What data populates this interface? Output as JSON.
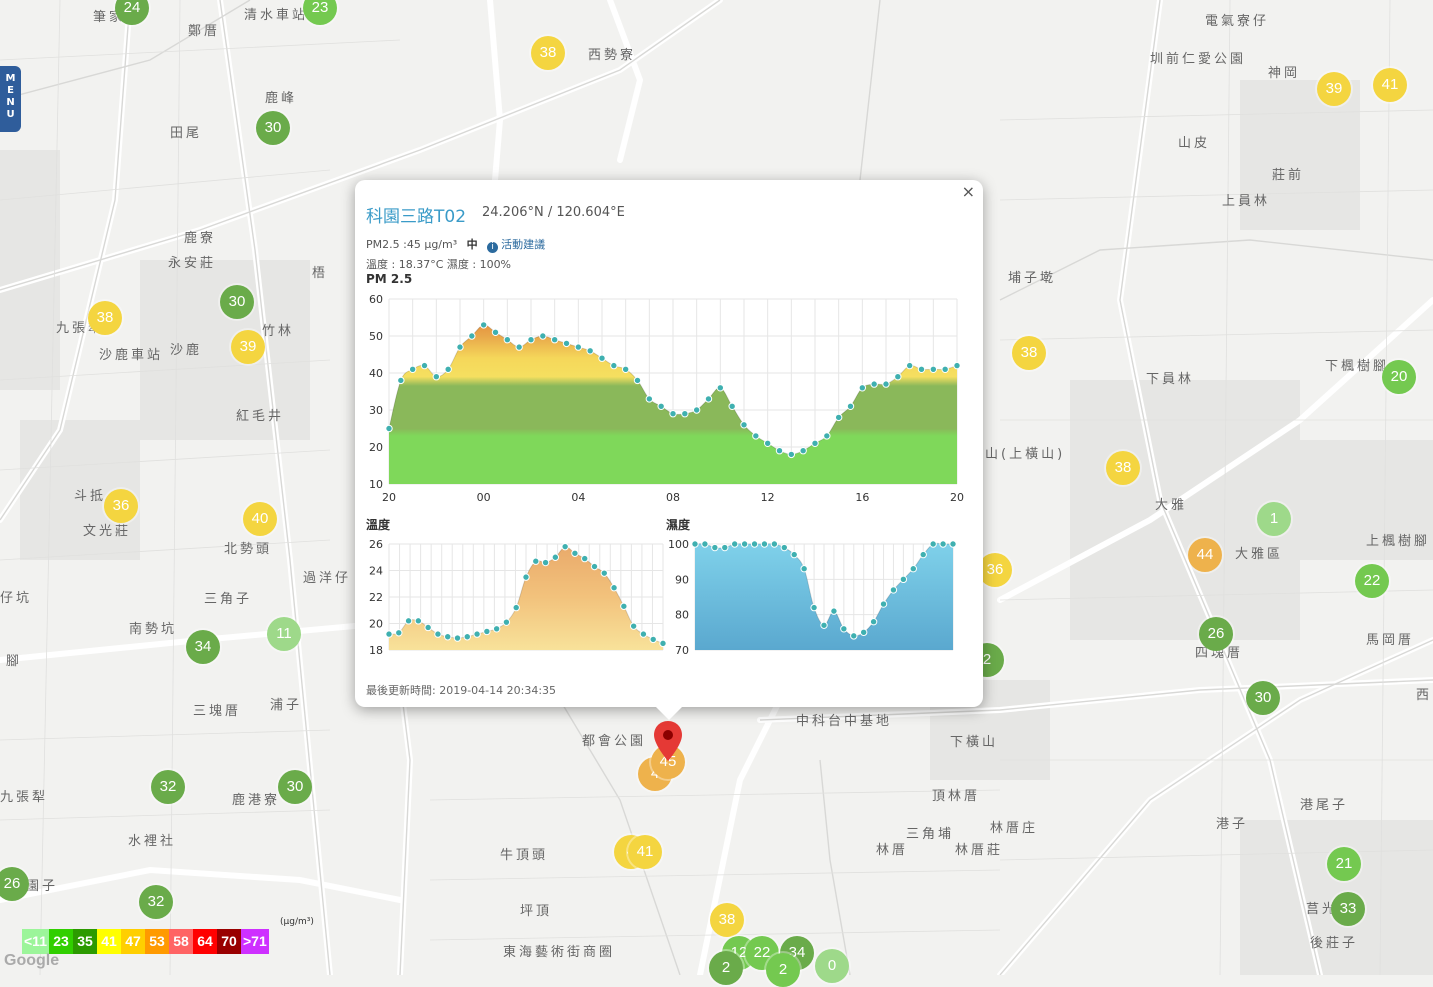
{
  "menu": {
    "label": "MENU"
  },
  "places": [
    {
      "name": "筆家",
      "x": 93,
      "y": 14
    },
    {
      "name": "鄭厝",
      "x": 188,
      "y": 28
    },
    {
      "name": "清水車站",
      "x": 244,
      "y": 12
    },
    {
      "name": "西勢寮",
      "x": 588,
      "y": 52
    },
    {
      "name": "電氣寮仔",
      "x": 1205,
      "y": 18
    },
    {
      "name": "鹿峰",
      "x": 265,
      "y": 95
    },
    {
      "name": "田尾",
      "x": 170,
      "y": 130
    },
    {
      "name": "圳前仁愛公園",
      "x": 1150,
      "y": 56
    },
    {
      "name": "神岡",
      "x": 1268,
      "y": 70
    },
    {
      "name": "山皮",
      "x": 1178,
      "y": 140
    },
    {
      "name": "莊前",
      "x": 1272,
      "y": 172
    },
    {
      "name": "鹿寮",
      "x": 184,
      "y": 235
    },
    {
      "name": "永安莊",
      "x": 168,
      "y": 260
    },
    {
      "name": "上員林",
      "x": 1222,
      "y": 198
    },
    {
      "name": "梧",
      "x": 312,
      "y": 270
    },
    {
      "name": "埔子墘",
      "x": 1008,
      "y": 275
    },
    {
      "name": "九張犁",
      "x": 56,
      "y": 325
    },
    {
      "name": "竹林",
      "x": 262,
      "y": 328
    },
    {
      "name": "沙鹿車站",
      "x": 99,
      "y": 352
    },
    {
      "name": "沙鹿",
      "x": 170,
      "y": 347
    },
    {
      "name": "下員林",
      "x": 1146,
      "y": 376
    },
    {
      "name": "下楓樹腳",
      "x": 1325,
      "y": 363
    },
    {
      "name": "紅毛井",
      "x": 236,
      "y": 413
    },
    {
      "name": "山(上橫山)",
      "x": 985,
      "y": 451
    },
    {
      "name": "斗抵",
      "x": 74,
      "y": 493
    },
    {
      "name": "文光莊",
      "x": 83,
      "y": 528
    },
    {
      "name": "大雅",
      "x": 1155,
      "y": 502
    },
    {
      "name": "大雅區",
      "x": 1235,
      "y": 551
    },
    {
      "name": "北勢頭",
      "x": 224,
      "y": 546
    },
    {
      "name": "過洋仔",
      "x": 303,
      "y": 575
    },
    {
      "name": "上楓樹腳",
      "x": 1366,
      "y": 538
    },
    {
      "name": "三角子",
      "x": 204,
      "y": 596
    },
    {
      "name": "仔坑",
      "x": 0,
      "y": 595
    },
    {
      "name": "南勢坑",
      "x": 129,
      "y": 626
    },
    {
      "name": "四塊厝",
      "x": 1195,
      "y": 650
    },
    {
      "name": "馬岡厝",
      "x": 1366,
      "y": 637
    },
    {
      "name": "腳",
      "x": 6,
      "y": 658
    },
    {
      "name": "浦子",
      "x": 270,
      "y": 702
    },
    {
      "name": "三塊厝",
      "x": 193,
      "y": 708
    },
    {
      "name": "中科台中基地",
      "x": 796,
      "y": 718
    },
    {
      "name": "都會公園",
      "x": 582,
      "y": 738
    },
    {
      "name": "下橫山",
      "x": 950,
      "y": 739
    },
    {
      "name": "西",
      "x": 1416,
      "y": 692
    },
    {
      "name": "頂林厝",
      "x": 932,
      "y": 793
    },
    {
      "name": "九張犁",
      "x": 0,
      "y": 794
    },
    {
      "name": "鹿港寮",
      "x": 232,
      "y": 797
    },
    {
      "name": "港尾子",
      "x": 1300,
      "y": 802
    },
    {
      "name": "港子",
      "x": 1216,
      "y": 821
    },
    {
      "name": "三角埔",
      "x": 906,
      "y": 831
    },
    {
      "name": "林厝庄",
      "x": 990,
      "y": 825
    },
    {
      "name": "水裡社",
      "x": 128,
      "y": 838
    },
    {
      "name": "林厝",
      "x": 876,
      "y": 847
    },
    {
      "name": "林厝莊",
      "x": 955,
      "y": 847
    },
    {
      "name": "牛頂頭",
      "x": 500,
      "y": 852
    },
    {
      "name": "園子",
      "x": 26,
      "y": 883
    },
    {
      "name": "坪頂",
      "x": 520,
      "y": 908
    },
    {
      "name": "莒光",
      "x": 1306,
      "y": 906
    },
    {
      "name": "後莊子",
      "x": 1310,
      "y": 940
    },
    {
      "name": "東海藝術街商圈",
      "x": 503,
      "y": 949
    }
  ],
  "markers": [
    {
      "value": "24",
      "x": 132,
      "y": 8,
      "c": "g"
    },
    {
      "value": "23",
      "x": 320,
      "y": 8,
      "c": "lg"
    },
    {
      "value": "38",
      "x": 548,
      "y": 53,
      "c": "y"
    },
    {
      "value": "39",
      "x": 1334,
      "y": 89,
      "c": "y"
    },
    {
      "value": "41",
      "x": 1390,
      "y": 85,
      "c": "y"
    },
    {
      "value": "30",
      "x": 273,
      "y": 128,
      "c": "g"
    },
    {
      "value": "30",
      "x": 237,
      "y": 302,
      "c": "g"
    },
    {
      "value": "38",
      "x": 105,
      "y": 318,
      "c": "y"
    },
    {
      "value": "39",
      "x": 248,
      "y": 347,
      "c": "y"
    },
    {
      "value": "38",
      "x": 1029,
      "y": 353,
      "c": "y"
    },
    {
      "value": "20",
      "x": 1399,
      "y": 377,
      "c": "lg"
    },
    {
      "value": "38",
      "x": 1123,
      "y": 468,
      "c": "y"
    },
    {
      "value": "36",
      "x": 121,
      "y": 506,
      "c": "y"
    },
    {
      "value": "40",
      "x": 260,
      "y": 519,
      "c": "y"
    },
    {
      "value": "1",
      "x": 1274,
      "y": 519,
      "c": "pg"
    },
    {
      "value": "44",
      "x": 1205,
      "y": 555,
      "c": "o"
    },
    {
      "value": "36",
      "x": 995,
      "y": 570,
      "c": "y"
    },
    {
      "value": "22",
      "x": 1372,
      "y": 581,
      "c": "lg"
    },
    {
      "value": "11",
      "x": 284,
      "y": 634,
      "c": "pg"
    },
    {
      "value": "26",
      "x": 1216,
      "y": 634,
      "c": "g"
    },
    {
      "value": "34",
      "x": 203,
      "y": 647,
      "c": "g"
    },
    {
      "value": "2",
      "x": 987,
      "y": 660,
      "c": "g"
    },
    {
      "value": "30",
      "x": 1263,
      "y": 698,
      "c": "g"
    },
    {
      "value": "4",
      "x": 655,
      "y": 774,
      "c": "o"
    },
    {
      "value": "45",
      "x": 668,
      "y": 762,
      "c": "o"
    },
    {
      "value": "32",
      "x": 168,
      "y": 787,
      "c": "g"
    },
    {
      "value": "30",
      "x": 295,
      "y": 787,
      "c": "g"
    },
    {
      "value": "4",
      "x": 631,
      "y": 852,
      "c": "y"
    },
    {
      "value": "41",
      "x": 645,
      "y": 852,
      "c": "y"
    },
    {
      "value": "21",
      "x": 1344,
      "y": 864,
      "c": "lg"
    },
    {
      "value": "26",
      "x": 12,
      "y": 884,
      "c": "g"
    },
    {
      "value": "32",
      "x": 156,
      "y": 902,
      "c": "g"
    },
    {
      "value": "33",
      "x": 1348,
      "y": 909,
      "c": "g"
    },
    {
      "value": "38",
      "x": 727,
      "y": 920,
      "c": "y"
    },
    {
      "value": "12",
      "x": 739,
      "y": 953,
      "c": "lg"
    },
    {
      "value": "22",
      "x": 762,
      "y": 953,
      "c": "lg"
    },
    {
      "value": "34",
      "x": 797,
      "y": 953,
      "c": "g"
    },
    {
      "value": "0",
      "x": 832,
      "y": 966,
      "c": "pg"
    },
    {
      "value": "2",
      "x": 726,
      "y": 968,
      "c": "g"
    },
    {
      "value": "2",
      "x": 783,
      "y": 970,
      "c": "lg"
    }
  ],
  "popup": {
    "title": "科園三路T02",
    "coords": "24.206°N / 120.604°E",
    "pm_text": "PM2.5 :45 μg/m³",
    "pm_level": "中",
    "advice_link": "活動建議",
    "info_icon": "info-icon",
    "temp_humidity_text": "溫度 : 18.37°C 濕度 : 100%",
    "pm_chart_title": "PM 2.5",
    "temp_chart_title": "溫度",
    "hum_chart_title": "濕度",
    "updated": "最後更新時間: 2019-04-14 20:34:35",
    "close_label": "×"
  },
  "chart_data": [
    {
      "type": "area",
      "title": "PM 2.5",
      "categories": [
        "20",
        "21",
        "22",
        "23",
        "00",
        "01",
        "02",
        "03",
        "04",
        "05",
        "06",
        "07",
        "08",
        "09",
        "10",
        "11",
        "12",
        "13",
        "14",
        "15",
        "16",
        "17",
        "18",
        "19",
        "20"
      ],
      "x": [
        20,
        20.5,
        21,
        21.5,
        22,
        22.5,
        23,
        23.5,
        24,
        24.5,
        25,
        25.5,
        26,
        26.5,
        27,
        27.5,
        28,
        28.5,
        29,
        29.5,
        30,
        30.5,
        31,
        31.5,
        32,
        32.5,
        33,
        33.5,
        34,
        34.5,
        35,
        35.5,
        36,
        36.5,
        37,
        37.5,
        38,
        38.5,
        39,
        39.5,
        40,
        40.5,
        41,
        41.5,
        42,
        42.5,
        43,
        43.5,
        44
      ],
      "x_tick_labels": [
        "20",
        "00",
        "04",
        "08",
        "12",
        "16",
        "20"
      ],
      "values": [
        25,
        38,
        41,
        42,
        39,
        41,
        47,
        50,
        53,
        51,
        49,
        47,
        49,
        50,
        49,
        48,
        47,
        46,
        44,
        42,
        41,
        38,
        33,
        31,
        29,
        29,
        30,
        33,
        36,
        31,
        26,
        23,
        21,
        19,
        18,
        19,
        21,
        23,
        28,
        31,
        36,
        37,
        37,
        39,
        42,
        41,
        41,
        41,
        42
      ],
      "ylim": [
        10,
        60
      ],
      "y_ticks": [
        10,
        20,
        30,
        40,
        50,
        60
      ],
      "grid": true
    },
    {
      "type": "area",
      "title": "溫度",
      "values": [
        19.2,
        19.3,
        20.2,
        20.2,
        19.7,
        19.2,
        19.0,
        18.9,
        19.0,
        19.2,
        19.4,
        19.6,
        20.1,
        21.2,
        23.5,
        24.7,
        24.6,
        25.0,
        25.8,
        25.3,
        24.9,
        24.3,
        23.8,
        22.7,
        21.3,
        19.8,
        19.2,
        18.8,
        18.5
      ],
      "ylim": [
        18,
        26
      ],
      "y_ticks": [
        18,
        20,
        22,
        24,
        26
      ],
      "grid": true
    },
    {
      "type": "area",
      "title": "濕度",
      "values": [
        100,
        100,
        99,
        99,
        100,
        100,
        100,
        100,
        100,
        99,
        97,
        93,
        82,
        77,
        81,
        76,
        74,
        75,
        78,
        83,
        87,
        90,
        93,
        97,
        100,
        100,
        100
      ],
      "ylim": [
        70,
        100
      ],
      "y_ticks": [
        70,
        80,
        90,
        100
      ],
      "grid": true
    }
  ],
  "legend": {
    "unit": "(μg/m³)",
    "items": [
      {
        "label": "<11",
        "color": "#9cf59a"
      },
      {
        "label": "23",
        "color": "#31cf00"
      },
      {
        "label": "35",
        "color": "#2c9a00"
      },
      {
        "label": "41",
        "color": "#ffff00"
      },
      {
        "label": "47",
        "color": "#ffcf00"
      },
      {
        "label": "53",
        "color": "#ff9a00"
      },
      {
        "label": "58",
        "color": "#ff6464"
      },
      {
        "label": "64",
        "color": "#ff0000"
      },
      {
        "label": "70",
        "color": "#990000"
      },
      {
        "label": ">71",
        "color": "#ce30ff"
      }
    ]
  },
  "attribution": "Google"
}
